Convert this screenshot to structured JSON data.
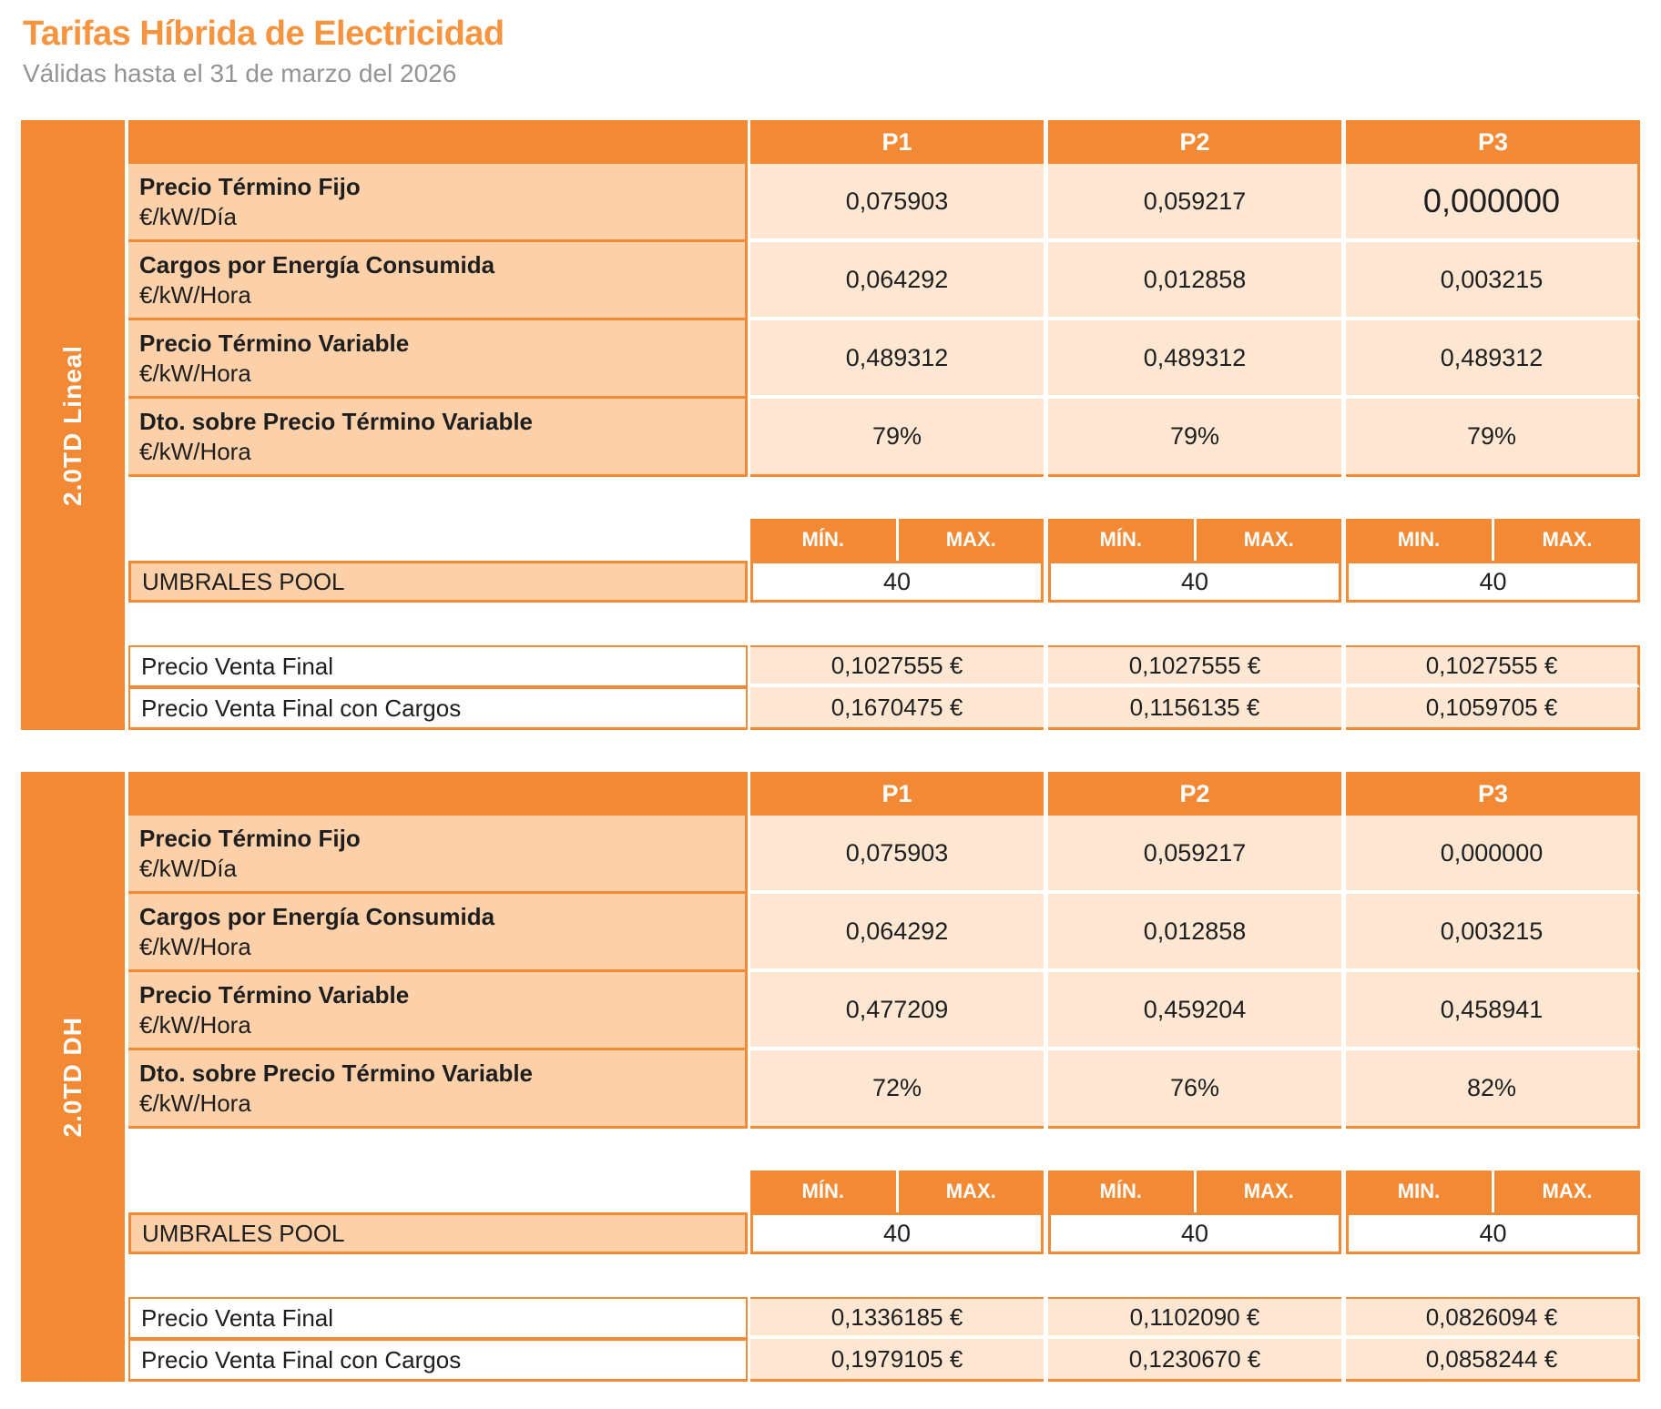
{
  "header": {
    "title": "Tarifas Híbrida de Electricidad",
    "subtitle": "Válidas hasta el 31 de marzo del 2026"
  },
  "colors": {
    "orange_primary": "#F28A35",
    "peach_label_bg": "#FCD0A8",
    "peach_value_bg": "#FDE7D3",
    "title_orange": "#F79440",
    "subtitle_gray": "#949494",
    "text_black": "#1E1E1E"
  },
  "sections": [
    {
      "sidebar_label": "2.0TD Lineal",
      "period_headers": [
        "P1",
        "P2",
        "P3"
      ],
      "rows": [
        {
          "label": "Precio Término Fijo",
          "unit": "€/kW/Día",
          "values": [
            "0,075903",
            "0,059217",
            "0,000000"
          ]
        },
        {
          "label": "Cargos por Energía Consumida",
          "unit": "€/kW/Hora",
          "values": [
            "0,064292",
            "0,012858",
            "0,003215"
          ]
        },
        {
          "label": "Precio Término Variable",
          "unit": "€/kW/Hora",
          "values": [
            "0,489312",
            "0,489312",
            "0,489312"
          ]
        },
        {
          "label": "Dto. sobre Precio Término Variable",
          "unit": "€/kW/Hora",
          "values": [
            "79%",
            "79%",
            "79%"
          ]
        }
      ],
      "minmax": [
        "MÍN.",
        "MAX.",
        "MÍN.",
        "MAX.",
        "MIN.",
        "MAX."
      ],
      "umbrales": {
        "label": "UMBRALES POOL",
        "values": [
          "40",
          "40",
          "40"
        ]
      },
      "venta": [
        {
          "label": "Precio Venta Final",
          "values": [
            "0,1027555 €",
            "0,1027555 €",
            "0,1027555 €"
          ]
        },
        {
          "label": "Precio Venta Final con Cargos",
          "values": [
            "0,1670475 €",
            "0,1156135 €",
            "0,1059705 €"
          ]
        }
      ]
    },
    {
      "sidebar_label": "2.0TD DH",
      "period_headers": [
        "P1",
        "P2",
        "P3"
      ],
      "rows": [
        {
          "label": "Precio Término Fijo",
          "unit": "€/kW/Día",
          "values": [
            "0,075903",
            "0,059217",
            "0,000000"
          ]
        },
        {
          "label": "Cargos por Energía Consumida",
          "unit": "€/kW/Hora",
          "values": [
            "0,064292",
            "0,012858",
            "0,003215"
          ]
        },
        {
          "label": "Precio Término Variable",
          "unit": "€/kW/Hora",
          "values": [
            "0,477209",
            "0,459204",
            "0,458941"
          ]
        },
        {
          "label": "Dto. sobre Precio Término Variable",
          "unit": "€/kW/Hora",
          "values": [
            "72%",
            "76%",
            "82%"
          ]
        }
      ],
      "minmax": [
        "MÍN.",
        "MAX.",
        "MÍN.",
        "MAX.",
        "MIN.",
        "MAX."
      ],
      "umbrales": {
        "label": "UMBRALES POOL",
        "values": [
          "40",
          "40",
          "40"
        ]
      },
      "venta": [
        {
          "label": "Precio Venta Final",
          "values": [
            "0,1336185 €",
            "0,1102090 €",
            "0,0826094 €"
          ]
        },
        {
          "label": "Precio Venta Final con Cargos",
          "values": [
            "0,1979105 €",
            "0,1230670 €",
            "0,0858244 €"
          ]
        }
      ]
    }
  ]
}
